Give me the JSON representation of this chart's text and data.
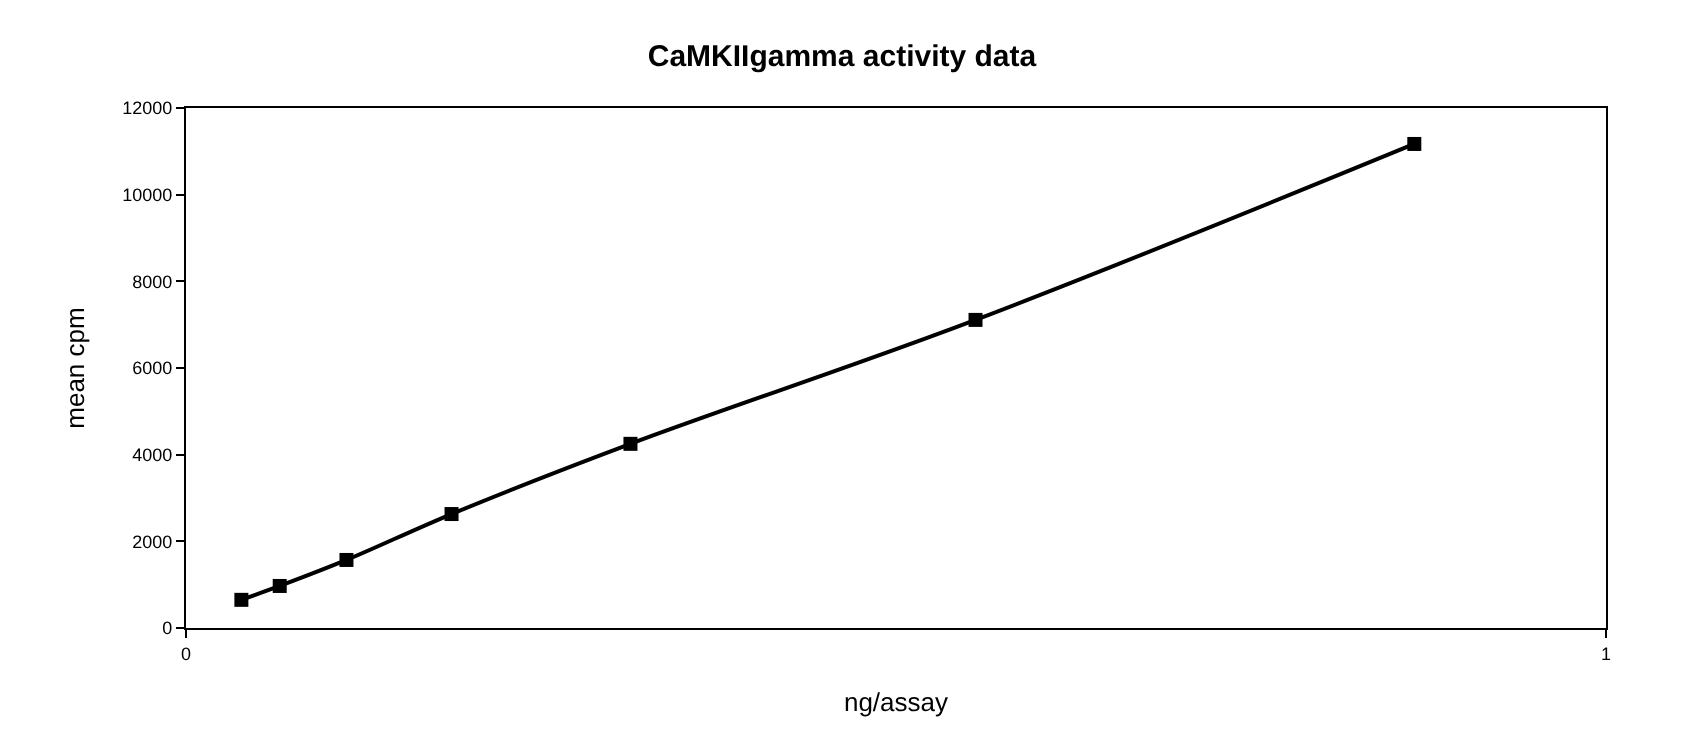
{
  "chart_data": {
    "type": "line",
    "title": "CaMKIIgamma activity data",
    "xlabel": "ng/assay",
    "ylabel": "mean cpm",
    "x": [
      0.039,
      0.066,
      0.113,
      0.187,
      0.313,
      0.556,
      0.865
    ],
    "series": [
      {
        "color": "#000000",
        "values": [
          650,
          970,
          1570,
          2630,
          4250,
          7110,
          11170
        ]
      }
    ],
    "xlim": [
      0,
      1
    ],
    "xticks": [
      0,
      1
    ],
    "ylim": [
      0,
      12000
    ],
    "yticks": [
      0,
      2000,
      4000,
      6000,
      8000,
      10000,
      12000
    ],
    "marker": "square",
    "line_style": "solid"
  }
}
